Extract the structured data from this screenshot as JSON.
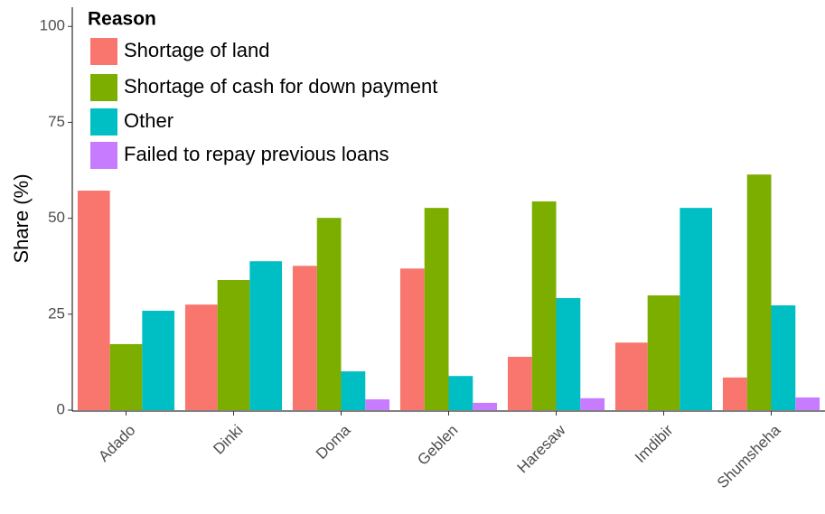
{
  "chart_data": {
    "type": "bar",
    "y_label": "Share (%)",
    "legend_title": "Reason",
    "legend_position": "top-left",
    "categories": [
      "Adado",
      "Dinki",
      "Doma",
      "Geblen",
      "Haresaw",
      "Imdibir",
      "Shumsheha"
    ],
    "series": [
      {
        "name": "Shortage of land",
        "color": "#f8766d",
        "values": [
          57.2,
          27.5,
          37.6,
          36.9,
          13.9,
          17.6,
          8.5
        ]
      },
      {
        "name": "Shortage of cash for down payment",
        "color": "#7cae00",
        "values": [
          17.2,
          33.9,
          50.1,
          52.7,
          54.4,
          29.9,
          61.4
        ]
      },
      {
        "name": "Other",
        "color": "#00bfc4",
        "values": [
          25.9,
          38.8,
          10.1,
          8.9,
          29.2,
          52.7,
          27.3
        ]
      },
      {
        "name": "Failed to repay previous loans",
        "color": "#c77cff",
        "values": [
          null,
          null,
          2.8,
          1.9,
          3.1,
          null,
          3.3
        ]
      }
    ],
    "ylim": [
      0,
      105
    ],
    "yticks": [
      0,
      25,
      50,
      75,
      100
    ]
  }
}
